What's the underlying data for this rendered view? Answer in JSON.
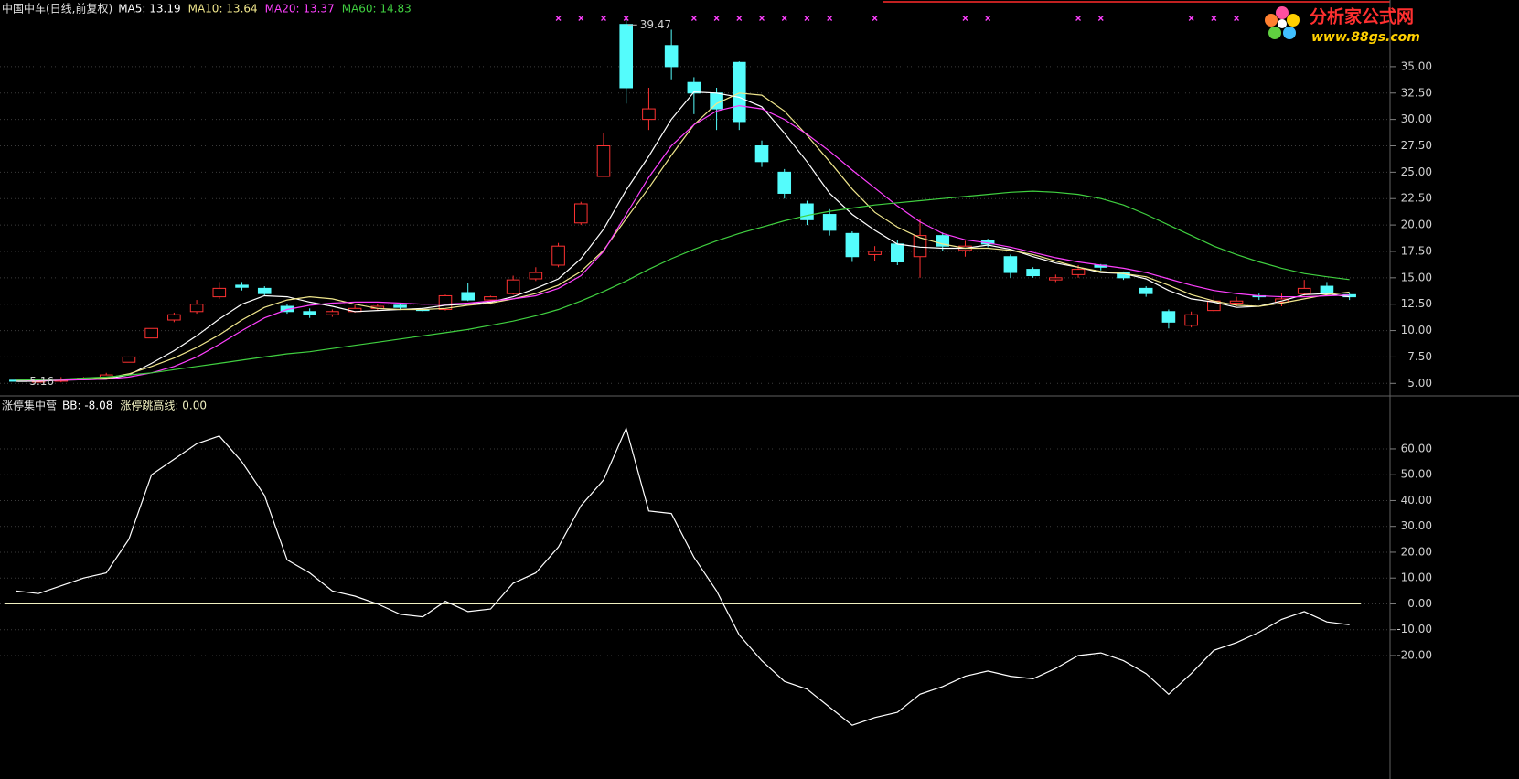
{
  "chart_data": [
    {
      "type": "candlestick",
      "title": "中国中车(日线,前复权)",
      "up_color": "#ff3232",
      "down_color": "#54fcfc",
      "open": [
        5.3,
        5.2,
        5.2,
        5.4,
        5.5,
        7.0,
        9.3,
        11.0,
        11.8,
        13.2,
        14.3,
        14.0,
        12.3,
        11.8,
        11.5,
        11.8,
        12.1,
        12.4,
        12.0,
        12.0,
        13.6,
        12.9,
        13.5,
        14.9,
        16.2,
        20.2,
        24.6,
        39.0,
        30.0,
        37.0,
        33.5,
        32.5,
        35.4,
        27.5,
        25.0,
        22.0,
        21.0,
        19.2,
        17.2,
        18.2,
        17.0,
        19.0,
        17.6,
        18.5,
        17.0,
        15.8,
        14.8,
        15.3,
        16.2,
        15.5,
        14.0,
        11.8,
        10.5,
        11.9,
        12.6,
        13.3,
        12.7,
        13.5,
        14.2,
        13.4
      ],
      "high": [
        5.4,
        5.3,
        5.6,
        5.6,
        6.0,
        7.5,
        10.2,
        11.7,
        12.9,
        14.6,
        14.6,
        14.2,
        12.5,
        12.1,
        12.0,
        12.4,
        12.5,
        12.6,
        12.2,
        13.4,
        14.5,
        13.3,
        15.2,
        16.0,
        18.3,
        22.2,
        28.7,
        39.47,
        33.0,
        38.5,
        34.0,
        33.0,
        35.5,
        28.0,
        25.3,
        22.3,
        21.5,
        19.4,
        18.0,
        18.6,
        20.6,
        19.3,
        18.5,
        18.7,
        17.2,
        16.0,
        15.3,
        16.2,
        16.3,
        15.6,
        14.2,
        12.0,
        11.8,
        13.3,
        13.2,
        13.5,
        13.5,
        14.8,
        14.6,
        13.6
      ],
      "low": [
        5.16,
        5.1,
        5.1,
        5.3,
        5.4,
        7.0,
        9.3,
        10.8,
        11.6,
        13.0,
        13.8,
        13.3,
        11.6,
        11.2,
        11.3,
        11.7,
        11.9,
        12.0,
        11.8,
        11.9,
        12.8,
        12.7,
        13.4,
        14.7,
        16.0,
        20.0,
        24.6,
        31.5,
        29.0,
        33.8,
        30.5,
        29.0,
        29.0,
        25.5,
        22.5,
        20.0,
        19.0,
        16.5,
        16.6,
        16.2,
        15.0,
        17.5,
        17.0,
        17.9,
        15.0,
        15.0,
        14.6,
        15.0,
        15.7,
        14.8,
        13.2,
        10.2,
        10.3,
        11.8,
        12.3,
        12.9,
        12.3,
        13.3,
        13.3,
        12.9
      ],
      "close": [
        5.2,
        5.2,
        5.4,
        5.5,
        5.8,
        7.5,
        10.2,
        11.5,
        12.5,
        14.0,
        14.1,
        13.5,
        11.8,
        11.5,
        11.8,
        12.1,
        12.3,
        12.2,
        11.9,
        13.3,
        12.9,
        13.2,
        14.8,
        15.5,
        18.0,
        22.0,
        27.5,
        33.0,
        31.0,
        35.0,
        32.5,
        31.0,
        29.8,
        26.0,
        23.0,
        20.5,
        19.5,
        17.0,
        17.5,
        16.5,
        19.0,
        18.0,
        18.0,
        18.2,
        15.5,
        15.2,
        15.0,
        15.8,
        16.0,
        15.0,
        13.5,
        10.8,
        11.5,
        12.8,
        12.8,
        13.2,
        13.0,
        14.0,
        13.5,
        13.2
      ],
      "series": [
        {
          "name": "MA5: 13.19",
          "color": "#ffffff",
          "values": [
            5.2,
            5.2,
            5.3,
            5.35,
            5.4,
            5.8,
            6.9,
            8.1,
            9.5,
            11.1,
            12.5,
            13.3,
            13.2,
            12.7,
            12.3,
            11.8,
            11.9,
            12.0,
            12.1,
            12.4,
            12.5,
            12.7,
            13.2,
            14.0,
            14.9,
            16.8,
            19.6,
            23.3,
            26.5,
            30.0,
            32.6,
            32.5,
            32.1,
            31.2,
            28.7,
            26.0,
            23.0,
            21.0,
            19.5,
            18.2,
            17.9,
            17.8,
            17.8,
            18.1,
            17.7,
            17.0,
            16.4,
            16.0,
            15.5,
            15.4,
            14.9,
            13.8,
            13.0,
            12.7,
            12.2,
            12.3,
            12.8,
            13.4,
            13.5,
            13.19
          ]
        },
        {
          "name": "MA10: 13.64",
          "color": "#f0e68c",
          "values": [
            5.3,
            5.3,
            5.3,
            5.4,
            5.5,
            5.9,
            6.6,
            7.4,
            8.4,
            9.6,
            11.0,
            12.2,
            12.9,
            13.2,
            13.0,
            12.5,
            12.1,
            12.0,
            12.0,
            12.1,
            12.4,
            12.6,
            13.0,
            13.5,
            14.3,
            15.6,
            17.6,
            20.6,
            23.5,
            26.6,
            29.5,
            31.5,
            32.5,
            32.3,
            30.8,
            28.5,
            26.0,
            23.4,
            21.2,
            19.8,
            18.8,
            18.2,
            17.8,
            17.8,
            17.6,
            17.2,
            16.6,
            16.0,
            15.6,
            15.4,
            15.1,
            14.3,
            13.4,
            12.8,
            12.4,
            12.3,
            12.6,
            13.0,
            13.4,
            13.64
          ]
        },
        {
          "name": "MA20: 13.37",
          "color": "#ff40ff",
          "values": [
            5.3,
            5.3,
            5.3,
            5.35,
            5.4,
            5.6,
            6.0,
            6.6,
            7.5,
            8.7,
            10.0,
            11.2,
            12.0,
            12.4,
            12.6,
            12.7,
            12.7,
            12.6,
            12.5,
            12.5,
            12.6,
            12.8,
            13.0,
            13.3,
            14.0,
            15.2,
            17.5,
            21.0,
            24.5,
            27.5,
            29.5,
            30.8,
            31.3,
            31.0,
            30.0,
            28.6,
            27.0,
            25.2,
            23.5,
            21.8,
            20.3,
            19.2,
            18.6,
            18.3,
            17.9,
            17.4,
            16.9,
            16.5,
            16.2,
            15.9,
            15.5,
            14.9,
            14.3,
            13.8,
            13.5,
            13.3,
            13.2,
            13.2,
            13.3,
            13.37
          ]
        },
        {
          "name": "MA60: 14.83",
          "color": "#40d040",
          "values": [
            5.3,
            5.35,
            5.4,
            5.5,
            5.6,
            5.8,
            6.0,
            6.3,
            6.6,
            6.9,
            7.2,
            7.5,
            7.8,
            8.0,
            8.3,
            8.6,
            8.9,
            9.2,
            9.5,
            9.8,
            10.1,
            10.5,
            10.9,
            11.4,
            12.0,
            12.8,
            13.7,
            14.7,
            15.8,
            16.8,
            17.7,
            18.5,
            19.2,
            19.8,
            20.4,
            20.9,
            21.3,
            21.6,
            21.9,
            22.1,
            22.3,
            22.5,
            22.7,
            22.9,
            23.1,
            23.2,
            23.1,
            22.9,
            22.5,
            21.9,
            21.0,
            20.0,
            19.0,
            18.0,
            17.2,
            16.5,
            15.9,
            15.4,
            15.1,
            14.83
          ]
        }
      ],
      "annotations": [
        {
          "index": 27,
          "value": 39.47
        },
        {
          "index": 0,
          "value": 5.16
        }
      ],
      "signals": [
        24,
        25,
        26,
        27,
        30,
        31,
        32,
        33,
        34,
        35,
        36,
        38,
        42,
        43,
        47,
        48,
        52,
        53,
        54
      ],
      "signal_color": "#ff40ff",
      "ylim": [
        3.9,
        40.1
      ],
      "yticks": [
        {
          "value": 5,
          "label": "5.00"
        },
        {
          "value": 7.5,
          "label": "7.50"
        },
        {
          "value": 10,
          "label": "10.00"
        },
        {
          "value": 12.5,
          "label": "12.50"
        },
        {
          "value": 15,
          "label": "15.00"
        },
        {
          "value": 17.5,
          "label": "17.50"
        },
        {
          "value": 20,
          "label": "20.00"
        },
        {
          "value": 22.5,
          "label": "22.50"
        },
        {
          "value": 25,
          "label": "25.00"
        },
        {
          "value": 27.5,
          "label": "27.50"
        },
        {
          "value": 30,
          "label": "30.00"
        },
        {
          "value": 32.5,
          "label": "32.50"
        },
        {
          "value": 35,
          "label": "35.00"
        }
      ],
      "grid": true
    },
    {
      "type": "line",
      "title": "涨停集中营",
      "series": [
        {
          "name": "BB: -8.08",
          "color": "#ffffff",
          "values": [
            5,
            4,
            7,
            10,
            12,
            25,
            50,
            56,
            62,
            65,
            55,
            42,
            17,
            12,
            5,
            3,
            0,
            -4,
            -5,
            1,
            -3,
            -2,
            8,
            12,
            22,
            38,
            48,
            68,
            36,
            35,
            18,
            5,
            -12,
            -22,
            -30,
            -33,
            -40,
            -47,
            -44,
            -42,
            -35,
            -32,
            -28,
            -26,
            -28,
            -29,
            -25,
            -20,
            -19,
            -22,
            -27,
            -35,
            -27,
            -18,
            -15,
            -11,
            -6,
            -3,
            -7,
            -8.08
          ]
        }
      ],
      "reference_lines": [
        {
          "name": "涨停跳高线: 0.00",
          "value": 0,
          "color": "#f0f0c0"
        }
      ],
      "ylim": [
        -67.8,
        79.1
      ],
      "yticks": [
        {
          "value": -20,
          "label": "-20.00"
        },
        {
          "value": -10,
          "label": "-10.00"
        },
        {
          "value": 0,
          "label": "0.00"
        },
        {
          "value": 10,
          "label": "10.00"
        },
        {
          "value": 20,
          "label": "20.00"
        },
        {
          "value": 30,
          "label": "30.00"
        },
        {
          "value": 40,
          "label": "40.00"
        },
        {
          "value": 50,
          "label": "50.00"
        },
        {
          "value": 60,
          "label": "60.00"
        }
      ],
      "grid": true
    }
  ],
  "watermark": {
    "title": "分析家公式网",
    "url": "www.88gs.com"
  }
}
